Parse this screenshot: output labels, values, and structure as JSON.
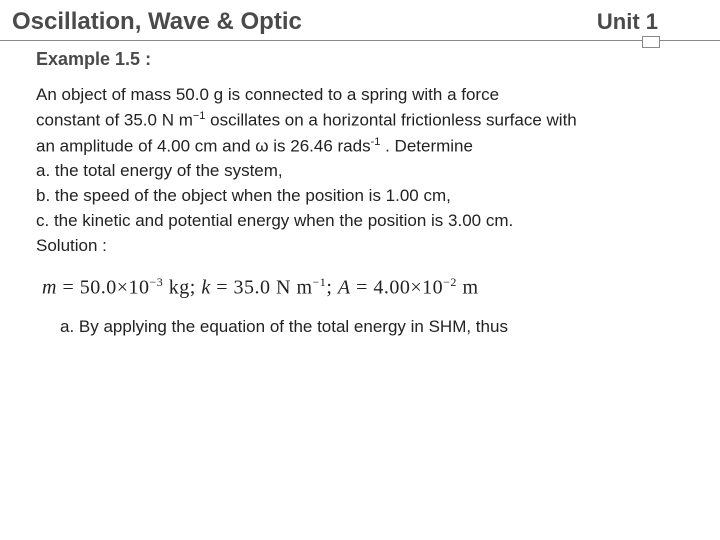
{
  "header": {
    "left": "Oscillation, Wave & Optic",
    "right": "Unit 1"
  },
  "subtitle": "Example 1.5 :",
  "problem": {
    "line1a": "An object of mass 50.0 g is  connected  to  a  spring with a force",
    "line1b_before": "constant of 35.0 N m",
    "line1b_exp": "−1",
    "line1b_after": " oscillates on a horizontal frictionless surface with",
    "line1c_before": "an amplitude of 4.00 cm and ω is 26.46 rads",
    "line1c_exp": "-1",
    "line1c_after": " . Determine",
    "a": "a. the total energy of the system,",
    "b": "b. the speed of the object when the position is 1.00 cm,",
    "c": "c. the kinetic and potential energy when the position is 3.00 cm.",
    "solution_label": "Solution :"
  },
  "equation": {
    "m_var": "m",
    "eq": " = ",
    "m_val": "50.0×10",
    "m_exp": "−3",
    "m_unit": " kg; ",
    "k_var": "k",
    "k_val": "35.0 N m",
    "k_exp": "−1",
    "k_sep": "; ",
    "A_var": "A",
    "A_val": "4.00×10",
    "A_exp": "−2",
    "A_unit": " m"
  },
  "after_eq": "a. By applying the equation of the total energy in SHM, thus",
  "colors": {
    "text": "#333333",
    "heading": "#4a4a4a",
    "border": "#888888",
    "background": "#ffffff"
  },
  "fonts": {
    "body_family": "Arial",
    "body_size_pt": 13,
    "heading_size_pt": 18,
    "equation_family": "Times New Roman",
    "equation_size_pt": 15
  }
}
